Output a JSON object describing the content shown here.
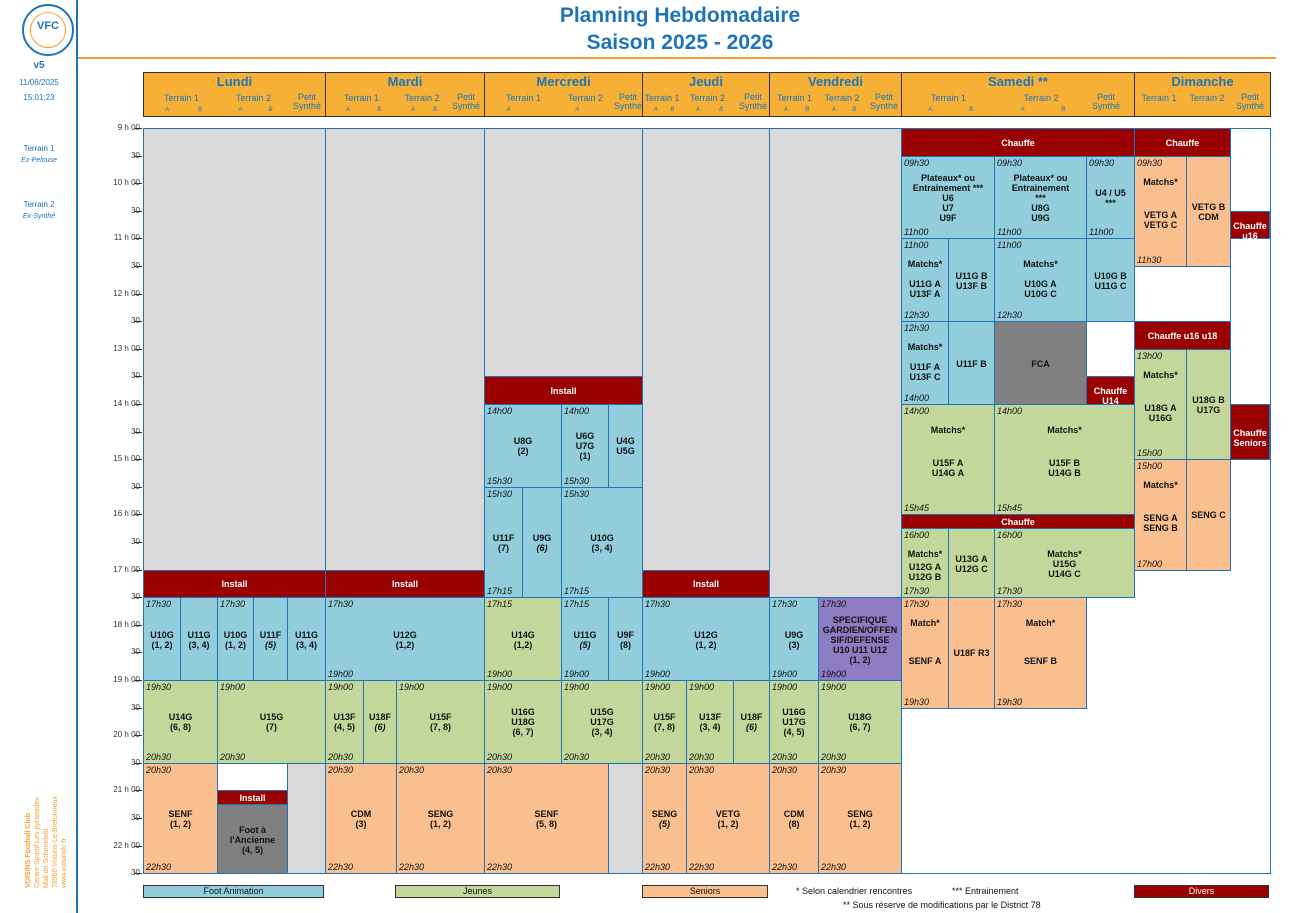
{
  "title": {
    "line1": "Planning Hebdomadaire",
    "line2": "Saison 2025 - 2026"
  },
  "side": {
    "version": "v5",
    "date": "11/06/2025",
    "time": "15:01:23",
    "t1": "Terrain 1",
    "t1b": "Ex-Pelouse",
    "t2": "Terrain 2",
    "t2b": "Ex-Synthé",
    "club_lines": [
      "VOISINS Football Club",
      "Centre Sportif Les pyramides",
      "Mail de Schenefeld",
      "78960 Voisins-Le-Bretonneux",
      "www.voisinsfc.fr"
    ],
    "logo_text": "VFC"
  },
  "days": [
    "Lundi",
    "Mardi",
    "Mercredi",
    "Jeudi",
    "Vendredi",
    "Samedi **",
    "Dimanche"
  ],
  "sub": {
    "t1": "Terrain 1",
    "t2": "Terrain 2",
    "ps": "Petit Synthé",
    "a": "A",
    "b": "B"
  },
  "times": [
    "9 h 00",
    "30",
    "10 h 00",
    "30",
    "11 h 00",
    "30",
    "12 h 00",
    "30",
    "13 h 00",
    "30",
    "14 h 00",
    "30",
    "15 h 00",
    "30",
    "16 h 00",
    "30",
    "17 h 00",
    "30",
    "18 h 00",
    "30",
    "19 h 00",
    "30",
    "20 h 00",
    "30",
    "21 h 00",
    "30",
    "22 h 00",
    "30"
  ],
  "legend": {
    "foot": "Foot Animation",
    "jeunes": "Jeunes",
    "seniors": "Seniors",
    "divers": "Divers",
    "n1": "* Selon calendrier rencontres",
    "n2": "*** Entrainement",
    "n3": "** Sous réserve de modifications par le District 78"
  },
  "colors": {
    "blue": "#92cddc",
    "green": "#c4d79b",
    "orange": "#fabf8f",
    "red": "#990000",
    "purple": "#8e7cc3",
    "header": "#f7b036",
    "title": "#1f74b8"
  },
  "blocks": [
    {
      "c": "red",
      "l": [
        "Install"
      ]
    },
    {
      "c": "red",
      "l": [
        "Install"
      ]
    },
    {
      "c": "red",
      "l": [
        "Install"
      ]
    },
    {
      "c": "red",
      "l": [
        "Install"
      ]
    },
    {
      "c": "red",
      "l": [
        "Install"
      ]
    },
    {
      "c": "red",
      "l": [
        "Chauffe"
      ]
    },
    {
      "c": "red",
      "l": [
        "Chauffe"
      ]
    },
    {
      "c": "red",
      "l": [
        "Chauffe u16"
      ]
    },
    {
      "c": "red",
      "l": [
        "Chauffe u16 u18"
      ]
    },
    {
      "c": "red",
      "l": [
        "Chauffe U14"
      ]
    },
    {
      "c": "red",
      "l": [
        "Chauffe Seniors"
      ]
    },
    {
      "c": "red",
      "l": [
        "Chauffe"
      ]
    },
    {
      "c": "blue",
      "l": [
        "U10G",
        "(1, 2)"
      ],
      "t": "17h30"
    },
    {
      "c": "blue",
      "l": [
        "U11G",
        "(3, 4)"
      ]
    },
    {
      "c": "blue",
      "l": [
        "U10G",
        "(1, 2)"
      ],
      "t": "17h30"
    },
    {
      "c": "blue",
      "l": [
        "U11F",
        "(5)"
      ]
    },
    {
      "c": "blue",
      "l": [
        "U11G",
        "(3, 4)"
      ]
    },
    {
      "c": "blue",
      "l": [
        "U12G",
        "(1,2)"
      ],
      "t": "17h30",
      "b": "19h00"
    },
    {
      "c": "blue",
      "l": [
        "U8G",
        "(2)"
      ],
      "t": "14h00",
      "b": "15h30"
    },
    {
      "c": "blue",
      "l": [
        "U6G",
        "U7G",
        "(1)"
      ],
      "t": "14h00",
      "b": "15h30"
    },
    {
      "c": "blue",
      "l": [
        "U4G",
        "U5G"
      ]
    },
    {
      "c": "blue",
      "l": [
        "U11F",
        "(7)"
      ],
      "t": "15h30",
      "b": "17h15"
    },
    {
      "c": "blue",
      "l": [
        "U9G",
        "(6)"
      ]
    },
    {
      "c": "blue",
      "l": [
        "U10G",
        "(3, 4)"
      ],
      "t": "15h30",
      "b": "17h15"
    },
    {
      "c": "green",
      "l": [
        "U14G",
        "(1,2)"
      ],
      "t": "17h15",
      "b": "19h00"
    },
    {
      "c": "blue",
      "l": [
        "U11G",
        "(5)"
      ],
      "t": "17h15",
      "b": "19h00"
    },
    {
      "c": "blue",
      "l": [
        "U9F",
        "(8)"
      ]
    },
    {
      "c": "blue",
      "l": [
        "U12G",
        "(1, 2)"
      ],
      "t": "17h30",
      "b": "19h00"
    },
    {
      "c": "blue",
      "l": [
        "U9G",
        "(3)"
      ],
      "t": "17h30",
      "b": "19h00"
    },
    {
      "c": "purple",
      "l": [
        "SPECIFIQUE",
        "GARDIEN/OFFEN",
        "SIF/DEFENSE",
        "U10 U11 U12",
        "(1, 2)"
      ],
      "t": "17h30",
      "b": "19h00"
    },
    {
      "c": "green",
      "l": [
        "U14G",
        "(6, 8)"
      ],
      "t": "19h30",
      "b": "20h30"
    },
    {
      "c": "green",
      "l": [
        "U15G",
        "(7)"
      ],
      "t": "19h00",
      "b": "20h30"
    },
    {
      "c": "green",
      "l": [
        "U13F",
        "(4, 5)"
      ],
      "t": "19h00",
      "b": "20h30"
    },
    {
      "c": "green",
      "l": [
        "U18F",
        "(6)"
      ]
    },
    {
      "c": "green",
      "l": [
        "U15F",
        "(7, 8)"
      ],
      "t": "19h00"
    },
    {
      "c": "green",
      "l": [
        "U16G",
        "U18G",
        "(6, 7)"
      ],
      "t": "19h00",
      "b": "20h30"
    },
    {
      "c": "green",
      "l": [
        "U15G",
        "U17G",
        "(3, 4)"
      ],
      "t": "19h00",
      "b": "20h30"
    },
    {
      "c": "green",
      "l": [
        "U15F",
        "(7, 8)"
      ],
      "t": "19h00",
      "b": "20h30"
    },
    {
      "c": "green",
      "l": [
        "U13F",
        "(3, 4)"
      ],
      "t": "19h00",
      "b": "20h30"
    },
    {
      "c": "green",
      "l": [
        "U18F",
        "(6)"
      ]
    },
    {
      "c": "green",
      "l": [
        "U16G",
        "U17G",
        "(4, 5)"
      ],
      "t": "19h00",
      "b": "20h30"
    },
    {
      "c": "green",
      "l": [
        "U18G",
        "(6, 7)"
      ],
      "t": "19h00",
      "b": "20h30"
    },
    {
      "c": "orange",
      "l": [
        "SENF",
        "(1, 2)"
      ],
      "t": "20h30",
      "b": "22h30"
    },
    {
      "c": "dark",
      "l": [
        "Foot à",
        "l'Ancienne",
        "(4, 5)"
      ]
    },
    {
      "c": "orange",
      "l": [
        "CDM",
        "(3)"
      ],
      "t": "20h30",
      "b": "22h30"
    },
    {
      "c": "orange",
      "l": [
        "SENG",
        "(1, 2)"
      ],
      "t": "20h30",
      "b": "22h30"
    },
    {
      "c": "orange",
      "l": [
        "SENF",
        "(5, 8)"
      ],
      "t": "20h30",
      "b": "22h30"
    },
    {
      "c": "orange",
      "l": [
        "SENG",
        "(5)"
      ],
      "t": "20h30",
      "b": "22h30"
    },
    {
      "c": "orange",
      "l": [
        "VETG",
        "(1, 2)"
      ],
      "t": "20h30",
      "b": "22h30"
    },
    {
      "c": "orange",
      "l": [
        "CDM",
        "(8)"
      ],
      "t": "20h30",
      "b": "22h30"
    },
    {
      "c": "orange",
      "l": [
        "SENG",
        "(1, 2)"
      ],
      "t": "20h30",
      "b": "22h30"
    },
    {
      "c": "blue",
      "l": [
        "Plateaux* ou",
        "Entrainement ***",
        "U6",
        "U7",
        "U9F"
      ],
      "t": "09h30",
      "b": "11h00"
    },
    {
      "c": "blue",
      "l": [
        "Plateaux* ou",
        "Entrainement",
        "***",
        "U8G",
        "U9G"
      ],
      "t": "09h30",
      "b": "11h00"
    },
    {
      "c": "blue",
      "l": [
        "U4 / U5",
        "***"
      ],
      "t": "09h30",
      "b": "11h00"
    },
    {
      "c": "blue",
      "l": [
        "Matchs*",
        "",
        "U11G A",
        "U13F A"
      ],
      "t": "11h00",
      "b": "12h30"
    },
    {
      "c": "blue",
      "l": [
        "U11G B",
        "U13F B"
      ]
    },
    {
      "c": "blue",
      "l": [
        "Matchs*",
        "",
        "U10G A",
        "U10G C"
      ],
      "t": "11h00",
      "b": "12h30"
    },
    {
      "c": "blue",
      "l": [
        "U10G B",
        "U11G C"
      ]
    },
    {
      "c": "blue",
      "l": [
        "Matchs*",
        "",
        "U11F A",
        "U13F C"
      ],
      "t": "12h30",
      "b": "14h00"
    },
    {
      "c": "blue",
      "l": [
        "U11F B"
      ]
    },
    {
      "c": "dark",
      "l": [
        "FCA"
      ]
    },
    {
      "c": "green",
      "l": [
        "Matchs*",
        "",
        "U15F A",
        "U14G A"
      ],
      "t": "14h00",
      "b": "15h45"
    },
    {
      "c": "green",
      "l": [
        "Matchs*",
        "",
        "U15F B",
        "U14G B"
      ],
      "t": "14h00",
      "b": "15h45"
    },
    {
      "c": "green",
      "l": [
        "Matchs*",
        "",
        "U12G A",
        "U12G B"
      ],
      "t": "16h00",
      "b": "17h30"
    },
    {
      "c": "green",
      "l": [
        "U13G A",
        "U12G C"
      ]
    },
    {
      "c": "green",
      "l": [
        "Matchs*",
        "U15G",
        "U14G C"
      ],
      "t": "16h00",
      "b": "17h30"
    },
    {
      "c": "orange",
      "l": [
        "Match*",
        "",
        "SENF A"
      ],
      "t": "17h30",
      "b": "19h30"
    },
    {
      "c": "orange",
      "l": [
        "U18F R3"
      ]
    },
    {
      "c": "orange",
      "l": [
        "Match*",
        "",
        "SENF B"
      ],
      "t": "17h30",
      "b": "19h30"
    },
    {
      "c": "orange",
      "l": [
        "Matchs*",
        "",
        "VETG A",
        "VETG C"
      ],
      "t": "09h30",
      "b": "11h30"
    },
    {
      "c": "orange",
      "l": [
        "VETG B",
        "CDM"
      ]
    },
    {
      "c": "green",
      "l": [
        "Matchs*",
        "",
        "U18G A",
        "U16G"
      ],
      "t": "13h00",
      "b": "15h00"
    },
    {
      "c": "green",
      "l": [
        "U18G B",
        "U17G"
      ]
    },
    {
      "c": "orange",
      "l": [
        "Matchs*",
        "",
        "SENG A",
        "SENG B"
      ],
      "t": "15h00",
      "b": "17h00"
    },
    {
      "c": "orange",
      "l": [
        "SENG C"
      ]
    }
  ]
}
